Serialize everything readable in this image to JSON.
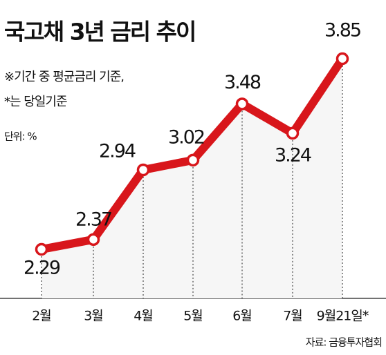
{
  "chart_data": {
    "type": "line",
    "title": "국고채 3년 금리 추이",
    "notes": [
      "※기간 중 평균금리 기준,",
      "*는 당일기준"
    ],
    "unit": "단위: %",
    "source": "자료: 금융투자협회",
    "categories": [
      "2월",
      "3월",
      "4월",
      "5월",
      "6월",
      "7월",
      "9월21일*"
    ],
    "values": [
      2.29,
      2.37,
      2.94,
      3.02,
      3.48,
      3.24,
      3.85
    ],
    "color": "#d8161b"
  }
}
